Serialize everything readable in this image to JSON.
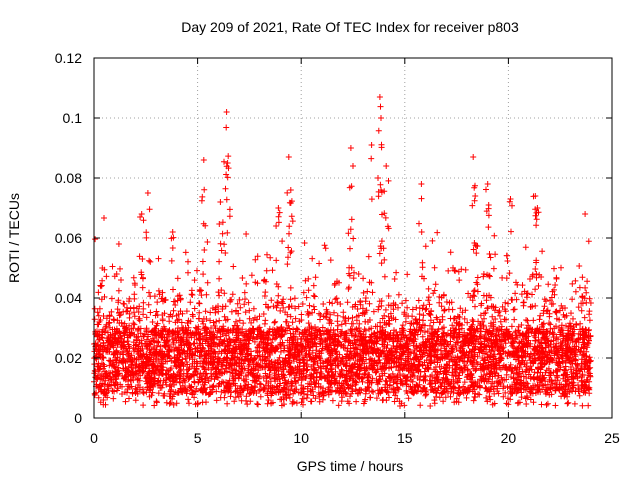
{
  "chart_data": {
    "type": "scatter",
    "title": "Day 209 of 2021, Rate Of TEC Index for receiver p803",
    "xlabel": "GPS time / hours",
    "ylabel": "ROTI / TECUs",
    "xlim": [
      0,
      25
    ],
    "ylim": [
      0,
      0.12
    ],
    "x_ticks": [
      0,
      5,
      10,
      15,
      20,
      25
    ],
    "y_ticks": [
      0,
      0.02,
      0.04,
      0.06,
      0.08,
      0.1,
      0.12
    ],
    "x_tick_labels": [
      "0",
      "5",
      "10",
      "15",
      "20",
      "25"
    ],
    "y_tick_labels": [
      "0",
      "0.02",
      "0.04",
      "0.06",
      "0.08",
      "0.1",
      "0.12"
    ],
    "grid": true,
    "marker": "+",
    "color": "#ff0000",
    "data_range_x": [
      0,
      24
    ],
    "baseline_band": [
      0.008,
      0.03
    ],
    "series": [
      {
        "name": "ROTI",
        "description_points": "dense cloud, notable peaks",
        "peaks": [
          {
            "x": 0.4,
            "y": 0.05
          },
          {
            "x": 1.2,
            "y": 0.058
          },
          {
            "x": 2.3,
            "y": 0.068
          },
          {
            "x": 2.6,
            "y": 0.075
          },
          {
            "x": 3.8,
            "y": 0.062
          },
          {
            "x": 5.3,
            "y": 0.086
          },
          {
            "x": 6.1,
            "y": 0.072
          },
          {
            "x": 6.4,
            "y": 0.102
          },
          {
            "x": 6.45,
            "y": 0.085
          },
          {
            "x": 8.9,
            "y": 0.07
          },
          {
            "x": 9.4,
            "y": 0.087
          },
          {
            "x": 9.5,
            "y": 0.076
          },
          {
            "x": 12.4,
            "y": 0.09
          },
          {
            "x": 12.5,
            "y": 0.084
          },
          {
            "x": 13.4,
            "y": 0.091
          },
          {
            "x": 13.8,
            "y": 0.107
          },
          {
            "x": 13.85,
            "y": 0.1
          },
          {
            "x": 14.1,
            "y": 0.084
          },
          {
            "x": 15.8,
            "y": 0.078
          },
          {
            "x": 18.3,
            "y": 0.087
          },
          {
            "x": 18.4,
            "y": 0.074
          },
          {
            "x": 19.0,
            "y": 0.078
          },
          {
            "x": 19.05,
            "y": 0.071
          },
          {
            "x": 20.1,
            "y": 0.073
          },
          {
            "x": 21.3,
            "y": 0.074
          },
          {
            "x": 21.4,
            "y": 0.07
          },
          {
            "x": 23.7,
            "y": 0.068
          }
        ]
      }
    ]
  }
}
